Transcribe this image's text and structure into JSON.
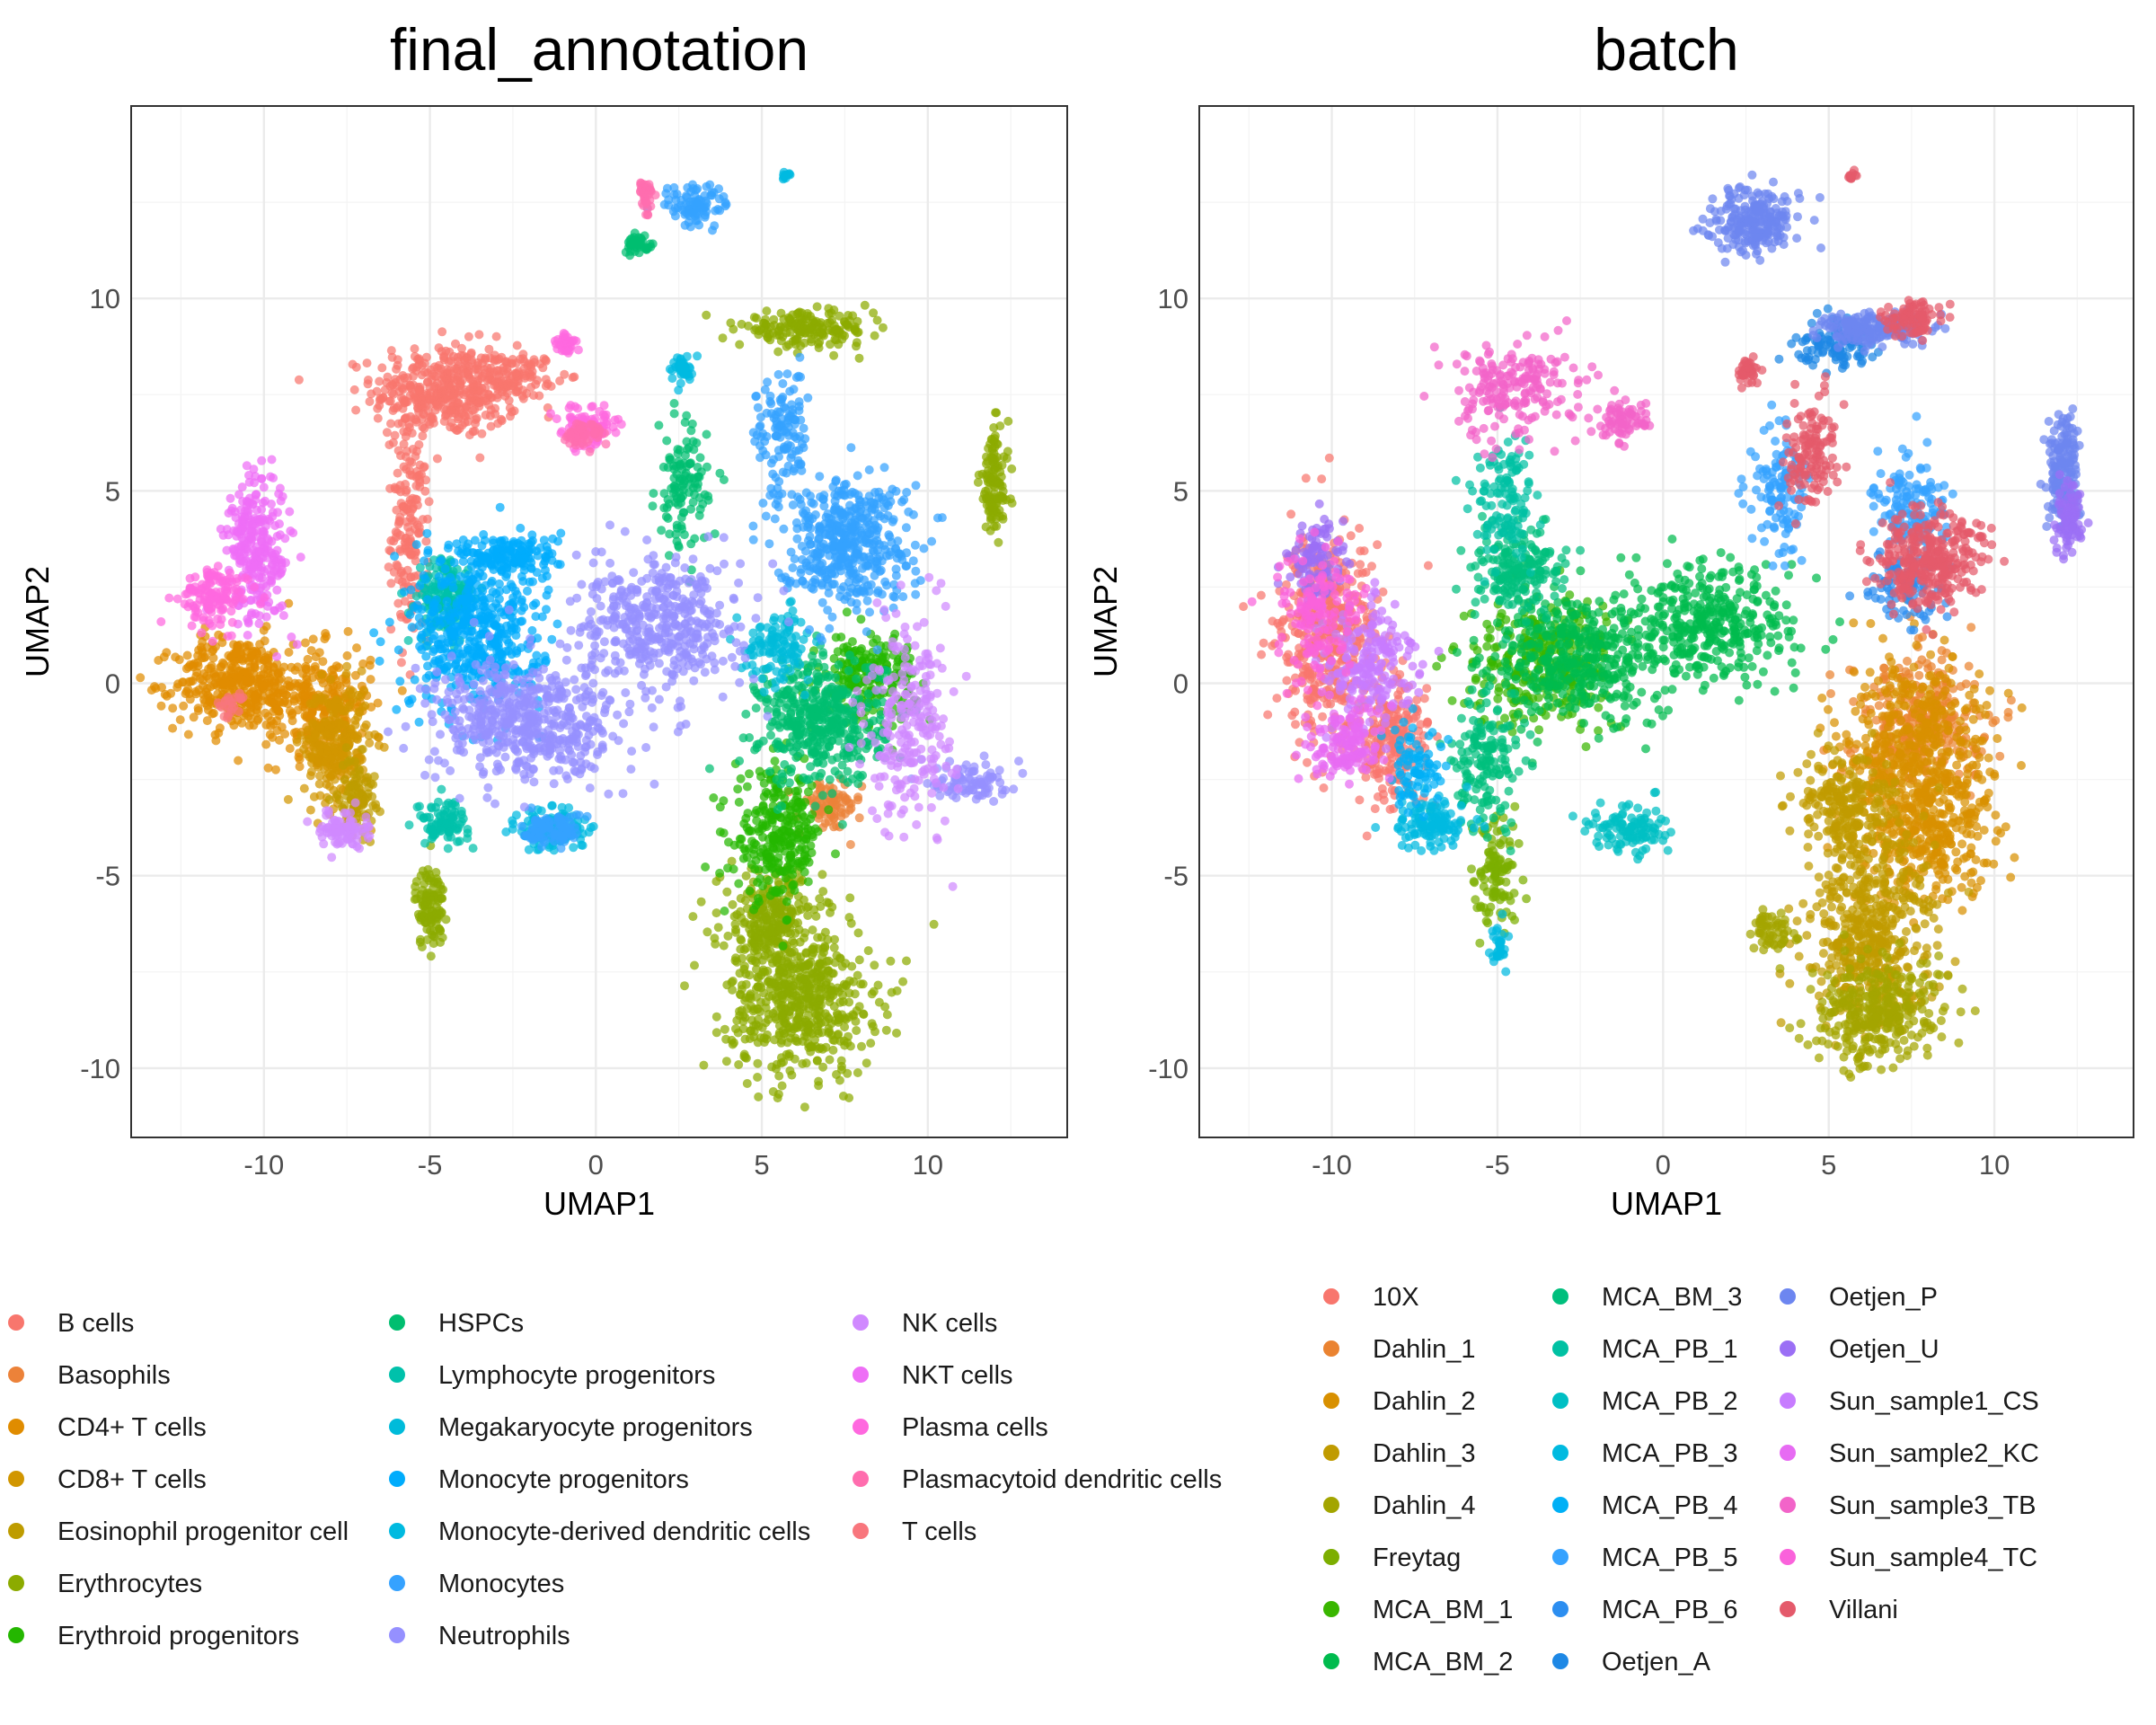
{
  "chart_data": [
    {
      "type": "scatter",
      "title": "final_annotation",
      "xlabel": "UMAP1",
      "ylabel": "UMAP2",
      "xlim": [
        -14,
        14.2
      ],
      "ylim": [
        -11.8,
        15
      ],
      "xticks": [
        -10,
        -5,
        0,
        5,
        10
      ],
      "yticks": [
        -10,
        -5,
        0,
        5,
        10
      ],
      "xtick_labels": [
        "-10",
        "-5",
        "0",
        "5",
        "10"
      ],
      "ytick_labels": [
        "-10",
        "-5",
        "0",
        "5",
        "10"
      ],
      "grid": true,
      "legend_position": "bottom",
      "series": [
        {
          "name": "B cells",
          "color": "#F8766D",
          "clusters": [
            [
              -4.5,
              7.6,
              2.0,
              1.1,
              420
            ],
            [
              -5.6,
              4.0,
              0.5,
              2.5,
              160
            ],
            [
              -2.3,
              8.0,
              1.0,
              0.5,
              90
            ]
          ]
        },
        {
          "name": "Basophils",
          "color": "#EC8239",
          "clusters": [
            [
              7.0,
              -3.2,
              0.9,
              0.6,
              80
            ]
          ]
        },
        {
          "name": "CD4+ T cells",
          "color": "#E08C00",
          "clusters": [
            [
              -10.8,
              0.0,
              1.7,
              1.1,
              380
            ],
            [
              -8.3,
              -0.5,
              1.4,
              1.3,
              260
            ]
          ]
        },
        {
          "name": "CD8+ T cells",
          "color": "#D19600",
          "clusters": [
            [
              -7.8,
              -1.6,
              0.9,
              1.4,
              280
            ]
          ]
        },
        {
          "name": "Eosinophil progenitor cell",
          "color": "#BE9C00",
          "clusters": [
            [
              -7.2,
              -2.9,
              0.5,
              0.9,
              90
            ]
          ]
        },
        {
          "name": "Erythrocytes",
          "color": "#8CAB00",
          "clusters": [
            [
              -5.0,
              -5.8,
              0.4,
              1.0,
              110
            ],
            [
              6.2,
              -8.3,
              2.0,
              1.7,
              520
            ],
            [
              5.3,
              -6.2,
              1.4,
              1.2,
              260
            ],
            [
              12.0,
              5.2,
              0.4,
              1.3,
              120
            ],
            [
              6.3,
              9.2,
              1.8,
              0.4,
              180
            ]
          ]
        },
        {
          "name": "Erythroid progenitors",
          "color": "#24B700",
          "clusters": [
            [
              5.5,
              -4.0,
              1.2,
              1.5,
              280
            ],
            [
              8.2,
              0.2,
              1.3,
              1.0,
              200
            ]
          ]
        },
        {
          "name": "HSPCs",
          "color": "#00BE70",
          "clusters": [
            [
              6.8,
              -1.0,
              1.7,
              1.5,
              420
            ],
            [
              2.6,
              5.0,
              0.7,
              1.5,
              120
            ],
            [
              1.3,
              11.4,
              0.4,
              0.2,
              40
            ]
          ]
        },
        {
          "name": "Lymphocyte progenitors",
          "color": "#00C1AB",
          "clusters": [
            [
              -4.5,
              2.2,
              0.8,
              1.0,
              160
            ],
            [
              -4.6,
              -3.6,
              0.7,
              0.5,
              90
            ]
          ]
        },
        {
          "name": "Megakaryocyte progenitors",
          "color": "#00BBDA",
          "clusters": [
            [
              5.5,
              1.0,
              0.9,
              0.8,
              110
            ]
          ]
        },
        {
          "name": "Monocyte progenitors",
          "color": "#00ACFC",
          "clusters": [
            [
              -3.6,
              1.3,
              1.8,
              1.8,
              480
            ],
            [
              -2.6,
              3.3,
              1.4,
              0.5,
              160
            ]
          ]
        },
        {
          "name": "Monocyte-derived dendritic cells",
          "color": "#00BAE0",
          "clusters": [
            [
              -1.3,
              -3.8,
              0.9,
              0.5,
              130
            ],
            [
              2.6,
              8.2,
              0.3,
              0.3,
              40
            ],
            [
              5.7,
              13.2,
              0.1,
              0.1,
              12
            ]
          ]
        },
        {
          "name": "Monocytes",
          "color": "#35A2FF",
          "clusters": [
            [
              7.5,
              3.7,
              1.8,
              1.5,
              460
            ],
            [
              3.0,
              12.4,
              0.9,
              0.5,
              90
            ],
            [
              5.6,
              6.5,
              0.7,
              1.5,
              120
            ],
            [
              -1.3,
              -3.8,
              0.8,
              0.4,
              90
            ]
          ]
        },
        {
          "name": "Neutrophils",
          "color": "#9590FF",
          "clusters": [
            [
              -2.0,
              -1.0,
              2.6,
              1.4,
              520
            ],
            [
              1.9,
              1.5,
              2.2,
              1.5,
              420
            ],
            [
              11.3,
              -2.5,
              1.0,
              0.5,
              90
            ]
          ]
        },
        {
          "name": "NK cells",
          "color": "#D089FF",
          "clusters": [
            [
              -7.6,
              -3.8,
              0.7,
              0.4,
              90
            ],
            [
              9.5,
              -1.0,
              1.2,
              2.5,
              240
            ]
          ]
        },
        {
          "name": "NKT cells",
          "color": "#EE6EF6",
          "clusters": [
            [
              -10.2,
              3.5,
              0.9,
              1.8,
              280
            ]
          ]
        },
        {
          "name": "Plasma cells",
          "color": "#FF68DF",
          "clusters": [
            [
              -11.5,
              2.2,
              0.9,
              0.7,
              130
            ],
            [
              -0.2,
              6.7,
              0.8,
              0.5,
              90
            ],
            [
              -0.9,
              8.8,
              0.3,
              0.3,
              40
            ]
          ]
        },
        {
          "name": "Plasmacytoid dendritic cells",
          "color": "#FF6DAE",
          "clusters": [
            [
              1.5,
              12.7,
              0.2,
              0.4,
              35
            ],
            [
              -0.4,
              6.5,
              0.5,
              0.3,
              60
            ]
          ]
        },
        {
          "name": "T cells",
          "color": "#F8767D",
          "clusters": [
            [
              -11.0,
              -0.6,
              0.4,
              0.3,
              25
            ]
          ]
        }
      ]
    },
    {
      "type": "scatter",
      "title": "batch",
      "xlabel": "UMAP1",
      "ylabel": "UMAP2",
      "xlim": [
        -14,
        14.2
      ],
      "ylim": [
        -11.8,
        15
      ],
      "xticks": [
        -10,
        -5,
        0,
        5,
        10
      ],
      "yticks": [
        -10,
        -5,
        0,
        5,
        10
      ],
      "xtick_labels": [
        "-10",
        "-5",
        "0",
        "5",
        "10"
      ],
      "ytick_labels": [
        "-10",
        "-5",
        "0",
        "5",
        "10"
      ],
      "grid": true,
      "legend_position": "bottom",
      "series": [
        {
          "name": "10X",
          "color": "#F8766D",
          "clusters": [
            [
              -10.2,
              1.2,
              1.4,
              2.4,
              420
            ],
            [
              -8.2,
              -1.5,
              1.1,
              1.6,
              200
            ]
          ]
        },
        {
          "name": "Dahlin_1",
          "color": "#EA8331",
          "clusters": [
            [
              7.8,
              -1.0,
              1.8,
              1.6,
              300
            ]
          ]
        },
        {
          "name": "Dahlin_2",
          "color": "#D89000",
          "clusters": [
            [
              7.6,
              -1.8,
              2.0,
              2.2,
              460
            ],
            [
              8.0,
              -4.0,
              1.9,
              1.6,
              300
            ]
          ]
        },
        {
          "name": "Dahlin_3",
          "color": "#C09B00",
          "clusters": [
            [
              6.3,
              -6.5,
              1.7,
              2.1,
              480
            ],
            [
              5.5,
              -3.2,
              1.4,
              1.2,
              220
            ]
          ]
        },
        {
          "name": "Dahlin_4",
          "color": "#A3A500",
          "clusters": [
            [
              6.5,
              -8.6,
              1.8,
              1.3,
              300
            ],
            [
              3.3,
              -6.5,
              0.6,
              0.5,
              60
            ]
          ]
        },
        {
          "name": "Freytag",
          "color": "#7CAE00",
          "clusters": [
            [
              -5.0,
              -5.0,
              0.6,
              1.3,
              110
            ]
          ]
        },
        {
          "name": "MCA_BM_1",
          "color": "#39B600",
          "clusters": [
            [
              -3.6,
              0.5,
              2.0,
              1.5,
              320
            ]
          ]
        },
        {
          "name": "MCA_BM_2",
          "color": "#00BB4E",
          "clusters": [
            [
              -2.5,
              0.6,
              2.5,
              1.6,
              420
            ],
            [
              1.6,
              1.6,
              2.0,
              1.4,
              340
            ]
          ]
        },
        {
          "name": "MCA_BM_3",
          "color": "#00BF7D",
          "clusters": [
            [
              -4.4,
              3.0,
              1.2,
              1.0,
              180
            ],
            [
              -5.4,
              -2.0,
              0.9,
              1.8,
              160
            ]
          ]
        },
        {
          "name": "MCA_PB_1",
          "color": "#00C1A3",
          "clusters": [
            [
              -4.8,
              4.8,
              0.8,
              1.5,
              120
            ]
          ]
        },
        {
          "name": "MCA_PB_2",
          "color": "#00BFC4",
          "clusters": [
            [
              -1.0,
              -3.8,
              1.0,
              0.5,
              110
            ]
          ]
        },
        {
          "name": "MCA_PB_3",
          "color": "#00BAE0",
          "clusters": [
            [
              -7.0,
              -3.6,
              1.0,
              0.6,
              120
            ],
            [
              -5.0,
              -6.8,
              0.3,
              0.5,
              30
            ]
          ]
        },
        {
          "name": "MCA_PB_4",
          "color": "#00B0F6",
          "clusters": [
            [
              -7.5,
              -2.2,
              0.8,
              1.0,
              80
            ]
          ]
        },
        {
          "name": "MCA_PB_5",
          "color": "#35A2FF",
          "clusters": [
            [
              3.5,
              5.0,
              0.8,
              1.6,
              120
            ],
            [
              7.5,
              4.5,
              1.1,
              1.2,
              140
            ]
          ]
        },
        {
          "name": "MCA_PB_6",
          "color": "#2C8EF0",
          "clusters": [
            [
              7.2,
              2.5,
              1.0,
              0.8,
              90
            ]
          ]
        },
        {
          "name": "Oetjen_A",
          "color": "#1E88E5",
          "clusters": [
            [
              5.2,
              8.8,
              1.2,
              0.6,
              110
            ]
          ]
        },
        {
          "name": "Oetjen_P",
          "color": "#6D86F0",
          "clusters": [
            [
              2.7,
              12.0,
              1.2,
              0.8,
              230
            ],
            [
              6.4,
              9.2,
              1.5,
              0.4,
              180
            ],
            [
              12.1,
              5.5,
              0.4,
              1.2,
              170
            ]
          ]
        },
        {
          "name": "Oetjen_U",
          "color": "#9B6FF5",
          "clusters": [
            [
              12.2,
              4.3,
              0.4,
              1.0,
              90
            ],
            [
              -10.5,
              3.2,
              0.8,
              1.0,
              100
            ]
          ]
        },
        {
          "name": "Sun_sample1_CS",
          "color": "#C77CFF",
          "clusters": [
            [
              -8.8,
              0.5,
              1.3,
              1.4,
              200
            ]
          ]
        },
        {
          "name": "Sun_sample2_KC",
          "color": "#E76BF3",
          "clusters": [
            [
              -9.5,
              -1.5,
              1.0,
              1.0,
              140
            ]
          ]
        },
        {
          "name": "Sun_sample3_TB",
          "color": "#F264C9",
          "clusters": [
            [
              -4.5,
              7.6,
              1.8,
              1.1,
              200
            ],
            [
              -1.3,
              6.8,
              0.7,
              0.5,
              70
            ]
          ]
        },
        {
          "name": "Sun_sample4_TC",
          "color": "#FA62DB",
          "clusters": [
            [
              -10.5,
              1.8,
              1.0,
              1.5,
              140
            ]
          ]
        },
        {
          "name": "Villani",
          "color": "#E45A6B",
          "clusters": [
            [
              8.0,
              3.2,
              1.6,
              1.1,
              320
            ],
            [
              4.5,
              6.0,
              0.8,
              1.3,
              130
            ],
            [
              2.5,
              8.1,
              0.3,
              0.3,
              40
            ],
            [
              5.7,
              13.2,
              0.1,
              0.1,
              12
            ],
            [
              7.5,
              9.5,
              0.8,
              0.4,
              90
            ]
          ]
        }
      ]
    }
  ]
}
